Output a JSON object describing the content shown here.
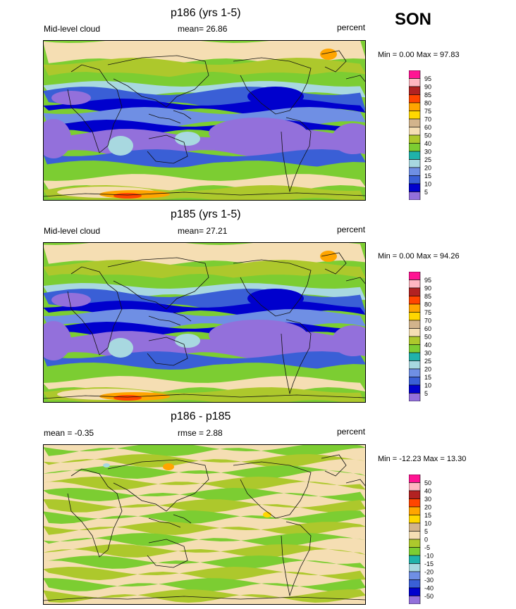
{
  "season": "SON",
  "colors": {
    "seq": [
      "#9370db",
      "#0000cd",
      "#3a5fd6",
      "#6f8fe4",
      "#a8d8e0",
      "#20b2aa",
      "#7ccd32",
      "#adc82c",
      "#f5deb3",
      "#d2b48c",
      "#ffd700",
      "#ffa500",
      "#ff4500",
      "#b22222",
      "#ffb6c1",
      "#ff1493"
    ],
    "diff": [
      "#9370db",
      "#0000cd",
      "#3a5fd6",
      "#6f8fe4",
      "#a8d8e0",
      "#20b2aa",
      "#7ccd32",
      "#adc82c",
      "#f5deb3",
      "#d2b48c",
      "#ffd700",
      "#ffa500",
      "#ff4500",
      "#b22222",
      "#ffb6c1",
      "#ff1493"
    ],
    "purple": "#9370db",
    "darkblue": "#0000cd",
    "cyan": "#a8d8e0",
    "green": "#7ccd32",
    "lightgreen": "#adc82c",
    "tan": "#f5deb3",
    "orange": "#ffa500",
    "red": "#ff4500"
  },
  "panels": [
    {
      "title": "p186 (yrs 1-5)",
      "left_label": "Mid-level cloud",
      "center_label": "mean=  26.86",
      "right_label": "percent",
      "minmax": "Min =   0.00 Max =  97.83",
      "legend_labels": [
        "95",
        "90",
        "85",
        "80",
        "75",
        "70",
        "60",
        "50",
        "40",
        "30",
        "25",
        "20",
        "15",
        "10",
        "5"
      ],
      "kind": "seq"
    },
    {
      "title": "p185 (yrs 1-5)",
      "left_label": "Mid-level cloud",
      "center_label": "mean=  27.21",
      "right_label": "percent",
      "minmax": "Min =   0.00 Max =  94.26",
      "legend_labels": [
        "95",
        "90",
        "85",
        "80",
        "75",
        "70",
        "60",
        "50",
        "40",
        "30",
        "25",
        "20",
        "15",
        "10",
        "5"
      ],
      "kind": "seq"
    },
    {
      "title": "p186 - p185",
      "left_label": "mean =  -0.35",
      "center_label": "rmse =   2.88",
      "right_label": "percent",
      "minmax": "Min = -12.23 Max =  13.30",
      "legend_labels": [
        "50",
        "40",
        "30",
        "20",
        "15",
        "10",
        "5",
        "0",
        "-5",
        "-10",
        "-15",
        "-20",
        "-30",
        "-40",
        "-50"
      ],
      "kind": "diff"
    }
  ]
}
